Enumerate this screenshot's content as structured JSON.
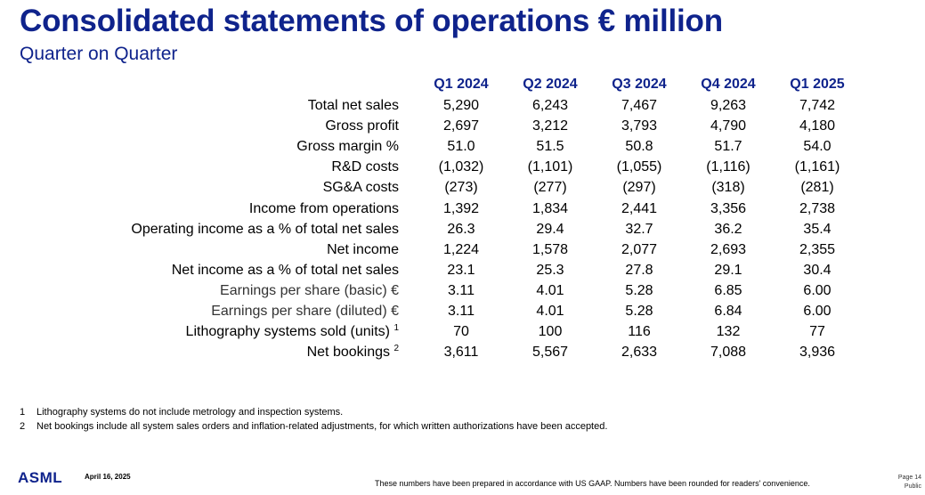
{
  "title": "Consolidated statements of operations € million",
  "subtitle": "Quarter on Quarter",
  "columns": [
    "Q1 2024",
    "Q2 2024",
    "Q3 2024",
    "Q4 2024",
    "Q1 2025"
  ],
  "rows": [
    {
      "label": "Total net sales",
      "values": [
        "5,290",
        "6,243",
        "7,467",
        "9,263",
        "7,742"
      ]
    },
    {
      "label": "Gross profit",
      "values": [
        "2,697",
        "3,212",
        "3,793",
        "4,790",
        "4,180"
      ]
    },
    {
      "label": "Gross margin %",
      "values": [
        "51.0",
        "51.5",
        "50.8",
        "51.7",
        "54.0"
      ]
    },
    {
      "label": "R&D costs",
      "values": [
        "(1,032)",
        "(1,101)",
        "(1,055)",
        "(1,116)",
        "(1,161)"
      ]
    },
    {
      "label": "SG&A costs",
      "values": [
        "(273)",
        "(277)",
        "(297)",
        "(318)",
        "(281)"
      ]
    },
    {
      "label": "Income from operations",
      "values": [
        "1,392",
        "1,834",
        "2,441",
        "3,356",
        "2,738"
      ]
    },
    {
      "label": "Operating income as a % of total net sales",
      "values": [
        "26.3",
        "29.4",
        "32.7",
        "36.2",
        "35.4"
      ]
    },
    {
      "label": "Net income",
      "values": [
        "1,224",
        "1,578",
        "2,077",
        "2,693",
        "2,355"
      ]
    },
    {
      "label": "Net income as a % of total net sales",
      "values": [
        "23.1",
        "25.3",
        "27.8",
        "29.1",
        "30.4"
      ]
    },
    {
      "label": "Earnings per share (basic) €",
      "values": [
        "3.11",
        "4.01",
        "5.28",
        "6.85",
        "6.00"
      ]
    },
    {
      "label": "Earnings per share (diluted) €",
      "values": [
        "3.11",
        "4.01",
        "5.28",
        "6.84",
        "6.00"
      ]
    },
    {
      "label": "Lithography systems sold (units)",
      "sup": "1",
      "values": [
        "70",
        "100",
        "116",
        "132",
        "77"
      ]
    },
    {
      "label": "Net bookings",
      "sup": "2",
      "values": [
        "3,611",
        "5,567",
        "2,633",
        "7,088",
        "3,936"
      ]
    }
  ],
  "footnotes": [
    {
      "num": "1",
      "text": "Lithography systems do not include metrology and inspection systems."
    },
    {
      "num": "2",
      "text": "Net bookings include all system sales orders and inflation-related adjustments, for which written authorizations have been accepted."
    }
  ],
  "footer": {
    "logo": "ASML",
    "date": "April 16, 2025",
    "disclaimer": "These numbers have been prepared in accordance with US GAAP.  Numbers have been rounded for readers' convenience.",
    "page": "Page 14",
    "classification": "Public"
  },
  "colors": {
    "brand": "#0f238c",
    "text": "#000000"
  }
}
